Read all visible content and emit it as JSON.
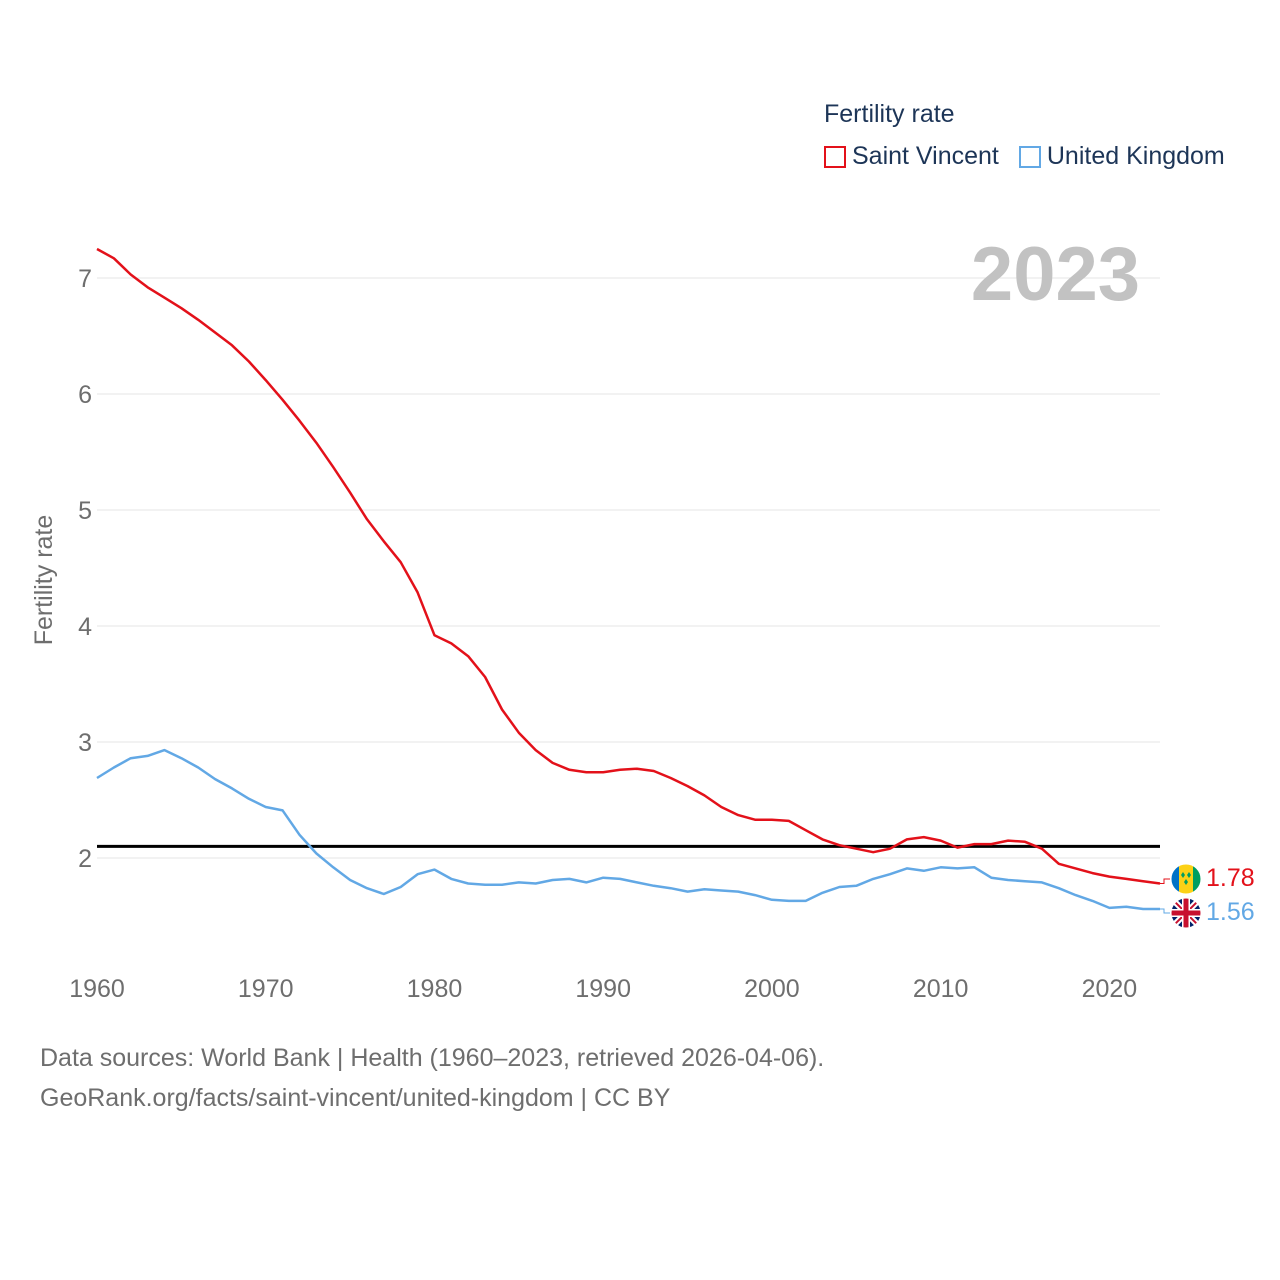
{
  "legend": {
    "title": "Fertility rate",
    "items": [
      {
        "label": "Saint Vincent",
        "color": "#e3111a"
      },
      {
        "label": "United Kingdom",
        "color": "#62a8e5"
      }
    ]
  },
  "footer": {
    "line1": "Data sources: World Bank | Health (1960–2023, retrieved 2026-04-06).",
    "line2": "GeoRank.org/facts/saint-vincent/united-kingdom | CC BY"
  },
  "chart_data": {
    "type": "line",
    "title": "Fertility rate",
    "year_label": "2023",
    "ylabel": "Fertility rate",
    "xlabel": "",
    "xlim": [
      1960,
      2023
    ],
    "ylim": [
      1.0,
      7.5
    ],
    "x_ticks": [
      1960,
      1970,
      1980,
      1990,
      2000,
      2010,
      2020
    ],
    "y_ticks": [
      2,
      3,
      4,
      5,
      6,
      7
    ],
    "reference_line": {
      "y": 2.1,
      "color": "#000000"
    },
    "x": [
      1960,
      1961,
      1962,
      1963,
      1964,
      1965,
      1966,
      1967,
      1968,
      1969,
      1970,
      1971,
      1972,
      1973,
      1974,
      1975,
      1976,
      1977,
      1978,
      1979,
      1980,
      1981,
      1982,
      1983,
      1984,
      1985,
      1986,
      1987,
      1988,
      1989,
      1990,
      1991,
      1992,
      1993,
      1994,
      1995,
      1996,
      1997,
      1998,
      1999,
      2000,
      2001,
      2002,
      2003,
      2004,
      2005,
      2006,
      2007,
      2008,
      2009,
      2010,
      2011,
      2012,
      2013,
      2014,
      2015,
      2016,
      2017,
      2018,
      2019,
      2020,
      2021,
      2022,
      2023
    ],
    "series": [
      {
        "name": "Saint Vincent",
        "color": "#e3111a",
        "end_label": "1.78",
        "flag": "saint-vincent-flag",
        "values": [
          7.25,
          7.17,
          7.03,
          6.92,
          6.83,
          6.74,
          6.64,
          6.53,
          6.42,
          6.28,
          6.12,
          5.95,
          5.77,
          5.58,
          5.37,
          5.15,
          4.92,
          4.73,
          4.55,
          4.29,
          3.92,
          3.85,
          3.74,
          3.56,
          3.28,
          3.08,
          2.93,
          2.82,
          2.76,
          2.74,
          2.74,
          2.76,
          2.77,
          2.75,
          2.69,
          2.62,
          2.54,
          2.44,
          2.37,
          2.33,
          2.33,
          2.32,
          2.24,
          2.16,
          2.11,
          2.08,
          2.05,
          2.08,
          2.16,
          2.18,
          2.15,
          2.09,
          2.12,
          2.12,
          2.15,
          2.14,
          2.08,
          1.95,
          1.91,
          1.87,
          1.84,
          1.82,
          1.8,
          1.78
        ]
      },
      {
        "name": "United Kingdom",
        "color": "#62a8e5",
        "end_label": "1.56",
        "flag": "united-kingdom-flag",
        "values": [
          2.69,
          2.78,
          2.86,
          2.88,
          2.93,
          2.86,
          2.78,
          2.68,
          2.6,
          2.51,
          2.44,
          2.41,
          2.2,
          2.04,
          1.92,
          1.81,
          1.74,
          1.69,
          1.75,
          1.86,
          1.9,
          1.82,
          1.78,
          1.77,
          1.77,
          1.79,
          1.78,
          1.81,
          1.82,
          1.79,
          1.83,
          1.82,
          1.79,
          1.76,
          1.74,
          1.71,
          1.73,
          1.72,
          1.71,
          1.68,
          1.64,
          1.63,
          1.63,
          1.7,
          1.75,
          1.76,
          1.82,
          1.86,
          1.91,
          1.89,
          1.92,
          1.91,
          1.92,
          1.83,
          1.81,
          1.8,
          1.79,
          1.74,
          1.68,
          1.63,
          1.57,
          1.58,
          1.56,
          1.56
        ]
      }
    ]
  }
}
